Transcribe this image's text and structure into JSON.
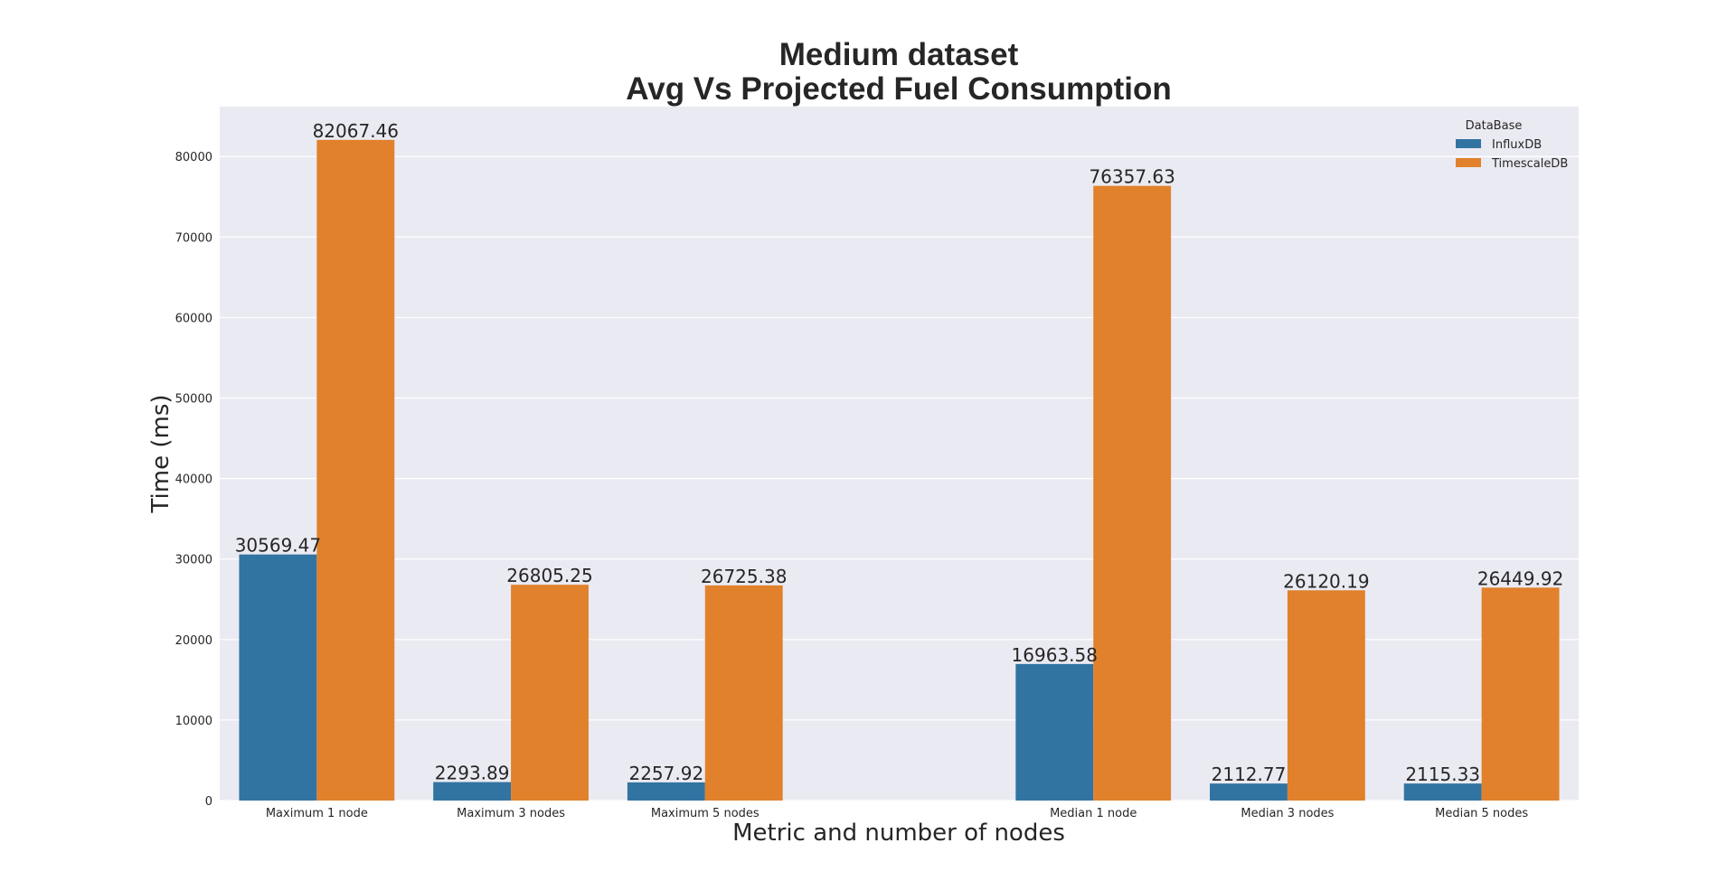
{
  "chart_data": {
    "type": "bar",
    "title": [
      "Medium dataset",
      "Avg Vs Projected Fuel Consumption"
    ],
    "xlabel": "Metric and number of nodes",
    "ylabel": "Time (ms)",
    "categories": [
      "Maximum 1 node",
      "Maximum 3 nodes",
      "Maximum 5 nodes",
      "",
      "Median 1 node",
      "Median 3 nodes",
      "Median 5 nodes"
    ],
    "series": [
      {
        "name": "InfluxDB",
        "values": [
          30569.47,
          2293.89,
          2257.92,
          null,
          16963.58,
          2112.77,
          2115.33
        ]
      },
      {
        "name": "TimescaleDB",
        "values": [
          82067.46,
          26805.25,
          26725.38,
          null,
          76357.63,
          26120.19,
          26449.92
        ]
      }
    ],
    "data_labels": {
      "InfluxDB": [
        "30569.47",
        "2293.89",
        "2257.92",
        "",
        "16963.58",
        "2112.77",
        "2115.33"
      ],
      "TimescaleDB": [
        "82067.46",
        "26805.25",
        "26725.38",
        "",
        "76357.63",
        "26120.19",
        "26449.92"
      ]
    },
    "yticks": [
      "0",
      "10000",
      "20000",
      "30000",
      "40000",
      "50000",
      "60000",
      "70000",
      "80000"
    ],
    "ylim": [
      0,
      86200
    ],
    "grid": true,
    "legend": {
      "title": "DataBase",
      "placement": "top-right"
    },
    "colors": {
      "InfluxDB": "#3274a1",
      "TimescaleDB": "#e1812c",
      "plot_background": "#eaeaf2",
      "grid": "#ffffff"
    }
  }
}
